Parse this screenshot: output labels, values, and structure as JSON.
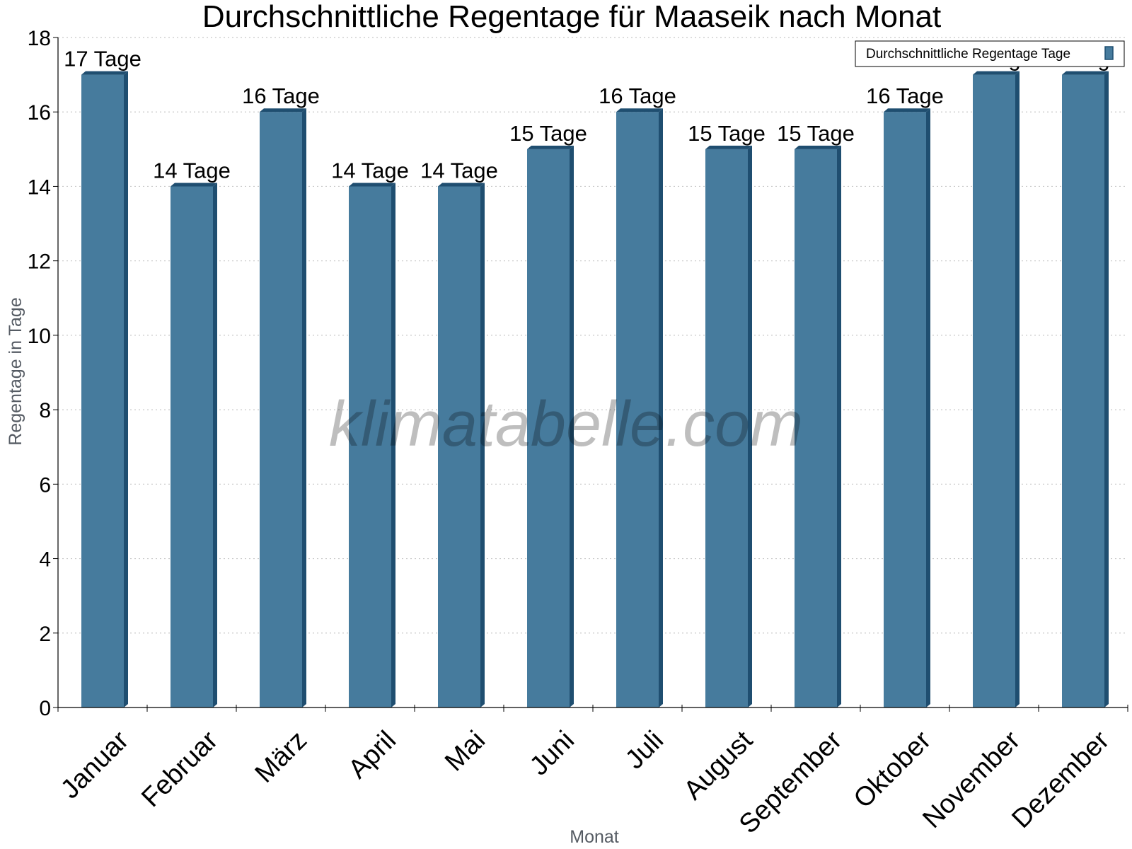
{
  "chart_data": {
    "type": "bar",
    "title": "Durchschnittliche Regentage für Maaseik nach Monat",
    "xlabel": "Monat",
    "ylabel": "Regentage in Tage",
    "categories": [
      "Januar",
      "Februar",
      "März",
      "April",
      "Mai",
      "Juni",
      "Juli",
      "August",
      "September",
      "Oktober",
      "November",
      "Dezember"
    ],
    "series": [
      {
        "name": "Durchschnittliche Regentage Tage",
        "values": [
          17,
          14,
          16,
          14,
          14,
          15,
          16,
          15,
          15,
          16,
          17,
          17
        ]
      }
    ],
    "data_labels": [
      "17 Tage",
      "14 Tage",
      "16 Tage",
      "14 Tage",
      "14 Tage",
      "15 Tage",
      "16 Tage",
      "15 Tage",
      "15 Tage",
      "16 Tage",
      "17 Tage",
      "17 Tage"
    ],
    "ylim": [
      0,
      18
    ],
    "yticks": [
      0,
      2,
      4,
      6,
      8,
      10,
      12,
      14,
      16,
      18
    ],
    "grid": true,
    "legend_position": "top-right",
    "colors": {
      "bar": "#467b9d",
      "bar_side": "#1f4e70",
      "bar_top": "#1f4e70",
      "grid": "#c8c8c8",
      "axis": "#000000"
    }
  },
  "watermark": "klimatabelle.com"
}
